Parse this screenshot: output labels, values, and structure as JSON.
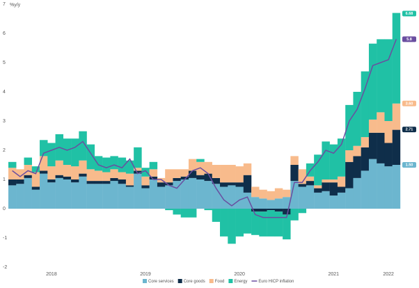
{
  "chart_data": {
    "type": "bar",
    "stacked": true,
    "y_label": "%y/y",
    "categories": [
      null,
      null,
      null,
      null,
      null,
      "2018",
      null,
      null,
      null,
      null,
      null,
      null,
      null,
      null,
      null,
      null,
      null,
      "2019",
      null,
      null,
      null,
      null,
      null,
      null,
      null,
      null,
      null,
      null,
      null,
      "2020",
      null,
      null,
      null,
      null,
      null,
      null,
      null,
      null,
      null,
      null,
      null,
      "2021",
      null,
      null,
      null,
      null,
      null,
      null,
      "2022",
      null
    ],
    "series": [
      {
        "name": "Core services",
        "color": "#6cb6cf",
        "values": [
          0.8,
          0.85,
          1.05,
          0.65,
          1.2,
          0.9,
          1.05,
          1.0,
          0.9,
          1.1,
          0.85,
          0.85,
          0.85,
          0.95,
          0.85,
          0.75,
          1.2,
          0.7,
          1.0,
          0.75,
          0.8,
          0.95,
          1.0,
          1.05,
          1.0,
          0.95,
          0.85,
          0.75,
          0.8,
          0.75,
          0.55,
          0.4,
          0.35,
          0.3,
          0.35,
          0.4,
          0.95,
          0.75,
          0.8,
          0.55,
          0.6,
          0.45,
          0.55,
          0.7,
          1.05,
          1.3,
          1.7,
          1.55,
          1.45,
          1.5
        ]
      },
      {
        "name": "Core goods",
        "color": "#0f2e4a",
        "values": [
          0.2,
          0.15,
          0.1,
          0.1,
          0.1,
          0.1,
          0.1,
          0.1,
          0.1,
          0.1,
          0.1,
          0.1,
          0.1,
          0.1,
          0.15,
          0.05,
          0.1,
          0.1,
          0.1,
          0.15,
          0.1,
          0.1,
          0.1,
          0.25,
          0.15,
          0.25,
          0.2,
          0.15,
          0.1,
          0.15,
          0.6,
          -0.1,
          -0.1,
          -0.05,
          -0.1,
          -0.2,
          0.55,
          0.1,
          0.15,
          0.15,
          0.3,
          0.45,
          0.2,
          0.9,
          0.75,
          0.8,
          0.9,
          1.05,
          0.8,
          1.2
        ]
      },
      {
        "name": "Food",
        "color": "#f8bb8c",
        "values": [
          0.4,
          0.35,
          0.35,
          0.5,
          0.5,
          0.45,
          0.5,
          0.4,
          0.45,
          0.45,
          0.4,
          0.35,
          0.3,
          0.3,
          0.25,
          0.4,
          0.1,
          0.3,
          0.25,
          0.15,
          0.45,
          0.3,
          0.25,
          0.4,
          0.45,
          0.4,
          0.45,
          0.6,
          0.6,
          0.55,
          0.4,
          0.35,
          0.3,
          0.3,
          0.35,
          0.25,
          0.3,
          0.5,
          0.15,
          0.1,
          0.1,
          0.1,
          0.35,
          0.4,
          0.35,
          0.35,
          0.45,
          0.7,
          0.75,
          0.9
        ]
      },
      {
        "name": "Energy",
        "color": "#20c1a5",
        "values": [
          0.2,
          0.0,
          0.25,
          0.2,
          0.55,
          0.8,
          0.9,
          0.9,
          0.95,
          1.0,
          0.85,
          0.5,
          0.5,
          0.45,
          0.5,
          0.45,
          0.7,
          0.3,
          0.25,
          0.0,
          -0.05,
          -0.2,
          -0.3,
          -0.3,
          0.1,
          -0.05,
          -0.45,
          -0.95,
          -1.2,
          -0.95,
          -0.85,
          -0.8,
          -0.85,
          -0.9,
          -0.85,
          -0.85,
          -0.4,
          -0.15,
          0.45,
          1.05,
          1.3,
          1.2,
          1.3,
          1.55,
          1.85,
          2.25,
          2.6,
          2.5,
          2.8,
          3.1
        ]
      },
      {
        "name": "Euro HICP inflation",
        "type": "line",
        "color": "#6a4ea0",
        "values": [
          1.3,
          1.1,
          1.3,
          1.2,
          1.9,
          2.0,
          2.1,
          2.0,
          2.1,
          2.3,
          1.9,
          1.5,
          1.4,
          1.5,
          1.4,
          1.7,
          1.2,
          1.3,
          1.0,
          1.0,
          0.8,
          0.7,
          1.0,
          1.3,
          1.4,
          1.2,
          0.7,
          0.3,
          0.1,
          0.3,
          0.4,
          -0.2,
          -0.3,
          -0.3,
          -0.3,
          -0.3,
          0.9,
          0.9,
          1.3,
          1.6,
          2.0,
          1.9,
          2.2,
          3.0,
          3.4,
          4.1,
          4.9,
          5.0,
          5.1,
          5.8
        ]
      }
    ],
    "annotations": [
      {
        "label": "6.68",
        "y": 6.68,
        "color": "#20c1a5"
      },
      {
        "label": "5.8",
        "y": 5.8,
        "color": "#6a4ea0"
      },
      {
        "label": "3.60",
        "y": 3.6,
        "color": "#f8bb8c"
      },
      {
        "label": "2.71",
        "y": 2.71,
        "color": "#0f2e4a"
      },
      {
        "label": "1.50",
        "y": 1.5,
        "color": "#6cb6cf"
      }
    ],
    "ylim": [
      -2,
      7
    ],
    "yticks": [
      -2,
      -1,
      0,
      1,
      2,
      3,
      4,
      5,
      6,
      7
    ],
    "grid": false
  }
}
